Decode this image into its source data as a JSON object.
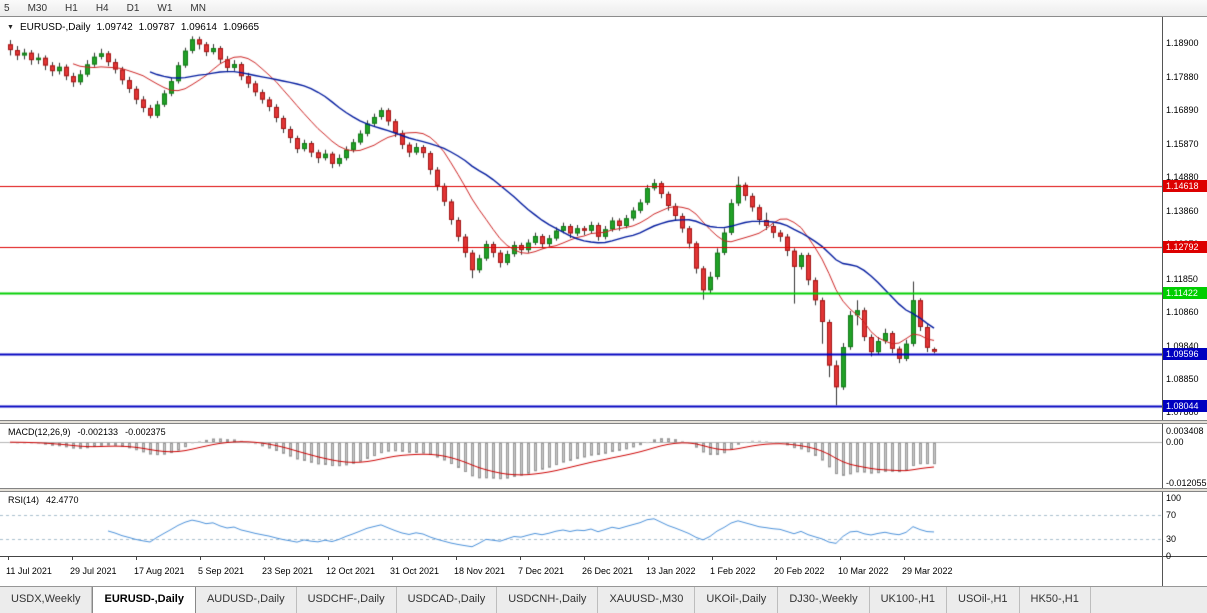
{
  "toolbar": {
    "timeframes": [
      "5",
      "M30",
      "H1",
      "H4",
      "D1",
      "W1",
      "MN"
    ]
  },
  "chart_header": {
    "marker": "▼",
    "symbol": "EURUSD-,Daily",
    "open": "1.09742",
    "high": "1.09787",
    "low": "1.09614",
    "close": "1.09665"
  },
  "chart_data": {
    "type": "candlestick",
    "title": "EURUSD-,Daily",
    "y_axis": {
      "min": 1.0768,
      "max": 1.1934,
      "labels": [
        "1.18900",
        "1.17880",
        "1.16890",
        "1.15870",
        "1.14880",
        "1.13860",
        "1.12870",
        "1.11850",
        "1.10860",
        "1.09840",
        "1.08850",
        "1.07860"
      ]
    },
    "x_labels": [
      "11 Jul 2021",
      "29 Jul 2021",
      "17 Aug 2021",
      "5 Sep 2021",
      "23 Sep 2021",
      "12 Oct 2021",
      "31 Oct 2021",
      "18 Nov 2021",
      "7 Dec 2021",
      "26 Dec 2021",
      "13 Jan 2022",
      "1 Feb 2022",
      "20 Feb 2022",
      "10 Mar 2022",
      "29 Mar 2022"
    ],
    "levels": [
      {
        "label": "1.14618",
        "price": 1.14618,
        "color": "#dd0000",
        "width": 1.2,
        "type": "resistance"
      },
      {
        "label": "1.12792",
        "price": 1.12792,
        "color": "#dd0000",
        "width": 1.2,
        "type": "resistance"
      },
      {
        "label": "1.11422",
        "price": 1.11422,
        "color": "#00ce00",
        "width": 2,
        "type": "support"
      },
      {
        "label": "1.09596",
        "price": 1.09596,
        "color": "#0000c0",
        "width": 2,
        "type": "support"
      },
      {
        "label": "1.08044",
        "price": 1.08044,
        "color": "#0000c0",
        "width": 2,
        "type": "support"
      }
    ],
    "colors": {
      "bull": "#21a127",
      "bull_border": "#127a17",
      "bear": "#e23535",
      "bear_border": "#a31515",
      "wick": "#333333",
      "ma_fast": "#cc2222",
      "ma_slow": "#001a9e"
    },
    "ma_periods": {
      "fast": 10,
      "slow": 21
    },
    "candles": [
      [
        1.1885,
        1.1898,
        1.1852,
        1.1868
      ],
      [
        1.1868,
        1.188,
        1.1838,
        1.1852
      ],
      [
        1.1852,
        1.1872,
        1.184,
        1.186
      ],
      [
        1.186,
        1.1868,
        1.1824,
        1.1838
      ],
      [
        1.1838,
        1.1858,
        1.1826,
        1.1845
      ],
      [
        1.1845,
        1.1852,
        1.1808,
        1.1822
      ],
      [
        1.1822,
        1.1832,
        1.179,
        1.1805
      ],
      [
        1.1805,
        1.183,
        1.1795,
        1.1818
      ],
      [
        1.1818,
        1.1825,
        1.1778,
        1.179
      ],
      [
        1.179,
        1.18,
        1.1758,
        1.1772
      ],
      [
        1.1772,
        1.1808,
        1.1764,
        1.1795
      ],
      [
        1.1795,
        1.1838,
        1.1788,
        1.1825
      ],
      [
        1.1825,
        1.186,
        1.1818,
        1.1848
      ],
      [
        1.1848,
        1.1872,
        1.184,
        1.1858
      ],
      [
        1.1858,
        1.1865,
        1.182,
        1.1832
      ],
      [
        1.1832,
        1.1842,
        1.1798,
        1.181
      ],
      [
        1.181,
        1.1818,
        1.1765,
        1.1778
      ],
      [
        1.1778,
        1.1788,
        1.174,
        1.1752
      ],
      [
        1.1752,
        1.176,
        1.1706,
        1.172
      ],
      [
        1.172,
        1.173,
        1.1682,
        1.1695
      ],
      [
        1.1695,
        1.1704,
        1.1664,
        1.1672
      ],
      [
        1.1672,
        1.1716,
        1.1665,
        1.1705
      ],
      [
        1.1705,
        1.1748,
        1.1698,
        1.1738
      ],
      [
        1.1738,
        1.1786,
        1.173,
        1.1775
      ],
      [
        1.1775,
        1.1832,
        1.1768,
        1.1822
      ],
      [
        1.1822,
        1.1875,
        1.1815,
        1.1866
      ],
      [
        1.1866,
        1.1909,
        1.1858,
        1.19
      ],
      [
        1.19,
        1.1908,
        1.187,
        1.1885
      ],
      [
        1.1885,
        1.1892,
        1.185,
        1.1862
      ],
      [
        1.1862,
        1.1886,
        1.1855,
        1.1874
      ],
      [
        1.1874,
        1.188,
        1.1828,
        1.184
      ],
      [
        1.184,
        1.185,
        1.1802,
        1.1815
      ],
      [
        1.1815,
        1.1838,
        1.1806,
        1.1826
      ],
      [
        1.1826,
        1.1832,
        1.1778,
        1.179
      ],
      [
        1.179,
        1.18,
        1.1755,
        1.1768
      ],
      [
        1.1768,
        1.1776,
        1.173,
        1.1742
      ],
      [
        1.1742,
        1.175,
        1.1708,
        1.172
      ],
      [
        1.172,
        1.1728,
        1.1685,
        1.1698
      ],
      [
        1.1698,
        1.1706,
        1.1652,
        1.1665
      ],
      [
        1.1665,
        1.1672,
        1.162,
        1.1632
      ],
      [
        1.1632,
        1.164,
        1.159,
        1.1605
      ],
      [
        1.1605,
        1.1612,
        1.156,
        1.1572
      ],
      [
        1.1572,
        1.16,
        1.1565,
        1.159
      ],
      [
        1.159,
        1.1596,
        1.1548,
        1.1562
      ],
      [
        1.1562,
        1.157,
        1.153,
        1.1545
      ],
      [
        1.1545,
        1.157,
        1.1538,
        1.1558
      ],
      [
        1.1558,
        1.1564,
        1.1515,
        1.1528
      ],
      [
        1.1528,
        1.1556,
        1.152,
        1.1545
      ],
      [
        1.1545,
        1.158,
        1.1538,
        1.157
      ],
      [
        1.157,
        1.1602,
        1.1562,
        1.1592
      ],
      [
        1.1592,
        1.1628,
        1.1585,
        1.1618
      ],
      [
        1.1618,
        1.1658,
        1.161,
        1.1648
      ],
      [
        1.1648,
        1.1678,
        1.164,
        1.1668
      ],
      [
        1.1668,
        1.1696,
        1.166,
        1.1688
      ],
      [
        1.1688,
        1.1694,
        1.1642,
        1.1655
      ],
      [
        1.1655,
        1.1662,
        1.1608,
        1.162
      ],
      [
        1.162,
        1.1628,
        1.1572,
        1.1585
      ],
      [
        1.1585,
        1.1592,
        1.1548,
        1.1562
      ],
      [
        1.1562,
        1.159,
        1.1555,
        1.1578
      ],
      [
        1.1578,
        1.1584,
        1.1546,
        1.156
      ],
      [
        1.156,
        1.1566,
        1.1496,
        1.151
      ],
      [
        1.151,
        1.1518,
        1.1448,
        1.1462
      ],
      [
        1.1462,
        1.147,
        1.1402,
        1.1415
      ],
      [
        1.1415,
        1.1422,
        1.1346,
        1.136
      ],
      [
        1.136,
        1.1368,
        1.1296,
        1.131
      ],
      [
        1.131,
        1.1318,
        1.1248,
        1.1262
      ],
      [
        1.1262,
        1.127,
        1.1186,
        1.121
      ],
      [
        1.121,
        1.1256,
        1.1202,
        1.1245
      ],
      [
        1.1245,
        1.1298,
        1.1238,
        1.1288
      ],
      [
        1.1288,
        1.1295,
        1.1248,
        1.1262
      ],
      [
        1.1262,
        1.127,
        1.1218,
        1.1232
      ],
      [
        1.1232,
        1.1268,
        1.1225,
        1.1258
      ],
      [
        1.1258,
        1.1296,
        1.125,
        1.1285
      ],
      [
        1.1285,
        1.1292,
        1.1256,
        1.127
      ],
      [
        1.127,
        1.1302,
        1.1262,
        1.1292
      ],
      [
        1.1292,
        1.1322,
        1.1285,
        1.1312
      ],
      [
        1.1312,
        1.1318,
        1.1275,
        1.1288
      ],
      [
        1.1288,
        1.1315,
        1.128,
        1.1305
      ],
      [
        1.1305,
        1.1338,
        1.1298,
        1.1328
      ],
      [
        1.1328,
        1.1352,
        1.132,
        1.1342
      ],
      [
        1.1342,
        1.1348,
        1.1306,
        1.132
      ],
      [
        1.132,
        1.1345,
        1.1312,
        1.1335
      ],
      [
        1.1335,
        1.1342,
        1.1315,
        1.1328
      ],
      [
        1.1328,
        1.1355,
        1.132,
        1.1345
      ],
      [
        1.1345,
        1.1352,
        1.1298,
        1.131
      ],
      [
        1.131,
        1.1342,
        1.1302,
        1.1332
      ],
      [
        1.1332,
        1.1368,
        1.1325,
        1.1358
      ],
      [
        1.1358,
        1.1365,
        1.1328,
        1.1342
      ],
      [
        1.1342,
        1.1375,
        1.1335,
        1.1365
      ],
      [
        1.1365,
        1.1398,
        1.1358,
        1.1388
      ],
      [
        1.1388,
        1.1422,
        1.138,
        1.1412
      ],
      [
        1.1412,
        1.1465,
        1.1405,
        1.1455
      ],
      [
        1.1455,
        1.1482,
        1.1448,
        1.147
      ],
      [
        1.147,
        1.1476,
        1.1425,
        1.1438
      ],
      [
        1.1438,
        1.1445,
        1.1388,
        1.1402
      ],
      [
        1.1402,
        1.141,
        1.1358,
        1.1372
      ],
      [
        1.1372,
        1.138,
        1.1322,
        1.1335
      ],
      [
        1.1335,
        1.1342,
        1.1275,
        1.129
      ],
      [
        1.129,
        1.1296,
        1.12,
        1.1215
      ],
      [
        1.1215,
        1.1222,
        1.1122,
        1.115
      ],
      [
        1.115,
        1.1205,
        1.114,
        1.119
      ],
      [
        1.119,
        1.1275,
        1.1182,
        1.1262
      ],
      [
        1.1262,
        1.1335,
        1.1255,
        1.1322
      ],
      [
        1.1322,
        1.1422,
        1.1315,
        1.141
      ],
      [
        1.141,
        1.149,
        1.1402,
        1.1465
      ],
      [
        1.1465,
        1.1472,
        1.1418,
        1.1432
      ],
      [
        1.1432,
        1.144,
        1.1385,
        1.1398
      ],
      [
        1.1398,
        1.1406,
        1.1346,
        1.136
      ],
      [
        1.136,
        1.1382,
        1.133,
        1.1342
      ],
      [
        1.1342,
        1.135,
        1.1306,
        1.1322
      ],
      [
        1.1322,
        1.133,
        1.1295,
        1.131
      ],
      [
        1.131,
        1.1318,
        1.1252,
        1.1268
      ],
      [
        1.1268,
        1.1275,
        1.111,
        1.122
      ],
      [
        1.122,
        1.1262,
        1.1212,
        1.1255
      ],
      [
        1.1255,
        1.1262,
        1.1165,
        1.118
      ],
      [
        1.118,
        1.1188,
        1.1105,
        1.112
      ],
      [
        1.112,
        1.1128,
        1.099,
        1.1055
      ],
      [
        1.1055,
        1.1062,
        1.089,
        1.0925
      ],
      [
        1.0925,
        1.094,
        1.0806,
        1.086
      ],
      [
        1.086,
        1.0992,
        1.0852,
        1.098
      ],
      [
        1.098,
        1.1088,
        1.0972,
        1.1075
      ],
      [
        1.1075,
        1.112,
        1.1045,
        1.109
      ],
      [
        1.109,
        1.1098,
        1.0998,
        1.101
      ],
      [
        1.101,
        1.1018,
        1.0952,
        1.0965
      ],
      [
        1.0965,
        1.101,
        1.0958,
        1.0998
      ],
      [
        1.0998,
        1.1035,
        1.099,
        1.1022
      ],
      [
        1.1022,
        1.1028,
        1.0962,
        1.0975
      ],
      [
        1.0975,
        1.0982,
        1.0932,
        1.0945
      ],
      [
        1.0945,
        1.1002,
        1.0938,
        1.099
      ],
      [
        1.099,
        1.1176,
        1.0982,
        1.112
      ],
      [
        1.112,
        1.1126,
        1.1028,
        1.104
      ],
      [
        1.104,
        1.1048,
        1.0965,
        1.0978
      ],
      [
        1.09742,
        1.09787,
        1.09614,
        1.09665
      ]
    ]
  },
  "macd_panel": {
    "title": "MACD(12,26,9)",
    "value": "-0.002133",
    "signal": "-0.002375",
    "axis_labels": [
      "0.003408",
      "0.00",
      "-0.012055"
    ],
    "range": {
      "max": 0.0048,
      "min": -0.013
    },
    "params": {
      "fast": 12,
      "slow": 26,
      "signal": 9
    },
    "colors": {
      "histogram": "#c8c8c8",
      "histogram_border": "#9a9a9a",
      "signal_line": "#cc0000"
    }
  },
  "rsi_panel": {
    "title": "RSI(14)",
    "value": "42.4770",
    "period": 14,
    "axis_labels": [
      "100",
      "70",
      "30",
      "0"
    ],
    "levels": [
      70,
      30
    ],
    "color": "#4a90d9",
    "level_line_color": "#a8bfce"
  },
  "tabs": [
    {
      "label": "USDX,Weekly",
      "active": false
    },
    {
      "label": "EURUSD-,Daily",
      "active": true
    },
    {
      "label": "AUDUSD-,Daily",
      "active": false
    },
    {
      "label": "USDCHF-,Daily",
      "active": false
    },
    {
      "label": "USDCAD-,Daily",
      "active": false
    },
    {
      "label": "USDCNH-,Daily",
      "active": false
    },
    {
      "label": "XAUUSD-,M30",
      "active": false
    },
    {
      "label": "UKOil-,Daily",
      "active": false
    },
    {
      "label": "DJ30-,Weekly",
      "active": false
    },
    {
      "label": "UK100-,H1",
      "active": false
    },
    {
      "label": "USOil-,H1",
      "active": false
    },
    {
      "label": "HK50-,H1",
      "active": false
    }
  ]
}
